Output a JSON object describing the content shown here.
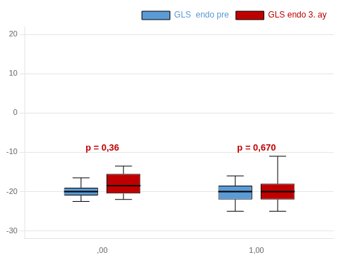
{
  "chart_data": {
    "type": "box",
    "categories": [
      ",00",
      "1,00"
    ],
    "series": [
      {
        "name": "GLS  endo pre",
        "color": "#5B9BD5",
        "values": [
          {
            "whislo": -22.5,
            "q1": -21.0,
            "med": -20.0,
            "q3": -19.0,
            "whishi": -16.5
          },
          {
            "whislo": -25.0,
            "q1": -22.0,
            "med": -20.0,
            "q3": -18.5,
            "whishi": -16.0
          }
        ]
      },
      {
        "name": "GLS endo 3. ay",
        "color": "#C00000",
        "values": [
          {
            "whislo": -22.0,
            "q1": -20.5,
            "med": -18.5,
            "q3": -15.5,
            "whishi": -13.5
          },
          {
            "whislo": -25.0,
            "q1": -22.0,
            "med": -20.0,
            "q3": -18.0,
            "whishi": -11.0
          }
        ]
      }
    ],
    "annotations": [
      {
        "text": "p = 0,36",
        "category": ",00",
        "y": -9,
        "color": "#C00000"
      },
      {
        "text": "p = 0,670",
        "category": "1,00",
        "y": -9,
        "color": "#C00000"
      }
    ],
    "ylim": [
      -32,
      22
    ],
    "yticks": [
      -30,
      -20,
      -10,
      0,
      10,
      20
    ],
    "grid": true,
    "legend": "upper right"
  }
}
